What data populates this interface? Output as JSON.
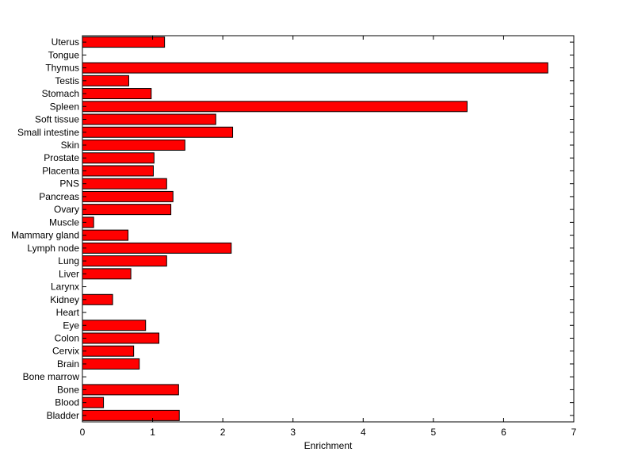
{
  "chart_data": {
    "type": "bar",
    "orientation": "horizontal",
    "title": "",
    "xlabel": "Enrichment",
    "ylabel": "",
    "xlim": [
      0,
      7
    ],
    "xticks": [
      0,
      1,
      2,
      3,
      4,
      5,
      6,
      7
    ],
    "grid": false,
    "legend": "none",
    "bar_color": "#ff0000",
    "categories": [
      "Uterus",
      "Tongue",
      "Thymus",
      "Testis",
      "Stomach",
      "Spleen",
      "Soft tissue",
      "Small intestine",
      "Skin",
      "Prostate",
      "Placenta",
      "PNS",
      "Pancreas",
      "Ovary",
      "Muscle",
      "Mammary gland",
      "Lymph node",
      "Lung",
      "Liver",
      "Larynx",
      "Kidney",
      "Heart",
      "Eye",
      "Colon",
      "Cervix",
      "Brain",
      "Bone marrow",
      "Bone",
      "Blood",
      "Bladder"
    ],
    "values": [
      1.17,
      0,
      6.63,
      0.66,
      0.98,
      5.48,
      1.9,
      2.14,
      1.46,
      1.02,
      1.01,
      1.2,
      1.29,
      1.26,
      0.16,
      0.65,
      2.12,
      1.2,
      0.69,
      0,
      0.43,
      0,
      0.9,
      1.09,
      0.73,
      0.81,
      0,
      1.37,
      0.3,
      1.38
    ]
  }
}
